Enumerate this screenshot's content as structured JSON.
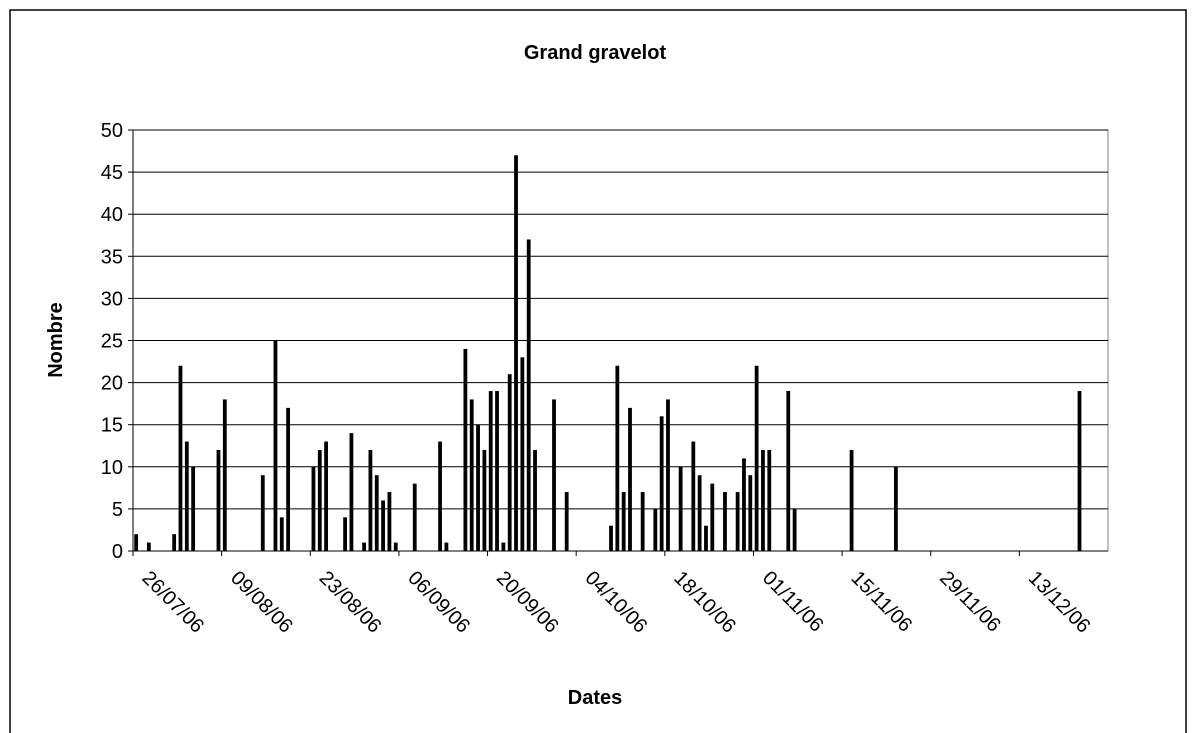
{
  "chart_data": {
    "type": "bar",
    "title": "Grand gravelot",
    "x_label": "Dates",
    "y_label": "Nombre",
    "color": "#000000",
    "x": [
      "26/07/06",
      "28/07/06",
      "01/08/06",
      "02/08/06",
      "03/08/06",
      "04/08/06",
      "08/08/06",
      "09/08/06",
      "15/08/06",
      "17/08/06",
      "18/08/06",
      "19/08/06",
      "23/08/06",
      "24/08/06",
      "25/08/06",
      "28/08/06",
      "29/08/06",
      "31/08/06",
      "01/09/06",
      "02/09/06",
      "03/09/06",
      "04/09/06",
      "05/09/06",
      "08/09/06",
      "12/09/06",
      "13/09/06",
      "16/09/06",
      "17/09/06",
      "18/09/06",
      "19/09/06",
      "20/09/06",
      "21/09/06",
      "22/09/06",
      "23/09/06",
      "24/09/06",
      "25/09/06",
      "26/09/06",
      "27/09/06",
      "30/09/06",
      "02/10/06",
      "09/10/06",
      "10/10/06",
      "11/10/06",
      "12/10/06",
      "14/10/06",
      "16/10/06",
      "17/10/06",
      "18/10/06",
      "20/10/06",
      "22/10/06",
      "23/10/06",
      "24/10/06",
      "25/10/06",
      "27/10/06",
      "29/10/06",
      "30/10/06",
      "31/10/06",
      "01/11/06",
      "02/11/06",
      "03/11/06",
      "06/11/06",
      "07/11/06",
      "16/11/06",
      "23/11/06",
      "22/12/06"
    ],
    "values": [
      2,
      1,
      2,
      22,
      13,
      10,
      12,
      18,
      9,
      25,
      4,
      17,
      10,
      12,
      13,
      4,
      14,
      1,
      12,
      9,
      6,
      7,
      1,
      8,
      13,
      1,
      24,
      18,
      15,
      12,
      19,
      19,
      1,
      21,
      47,
      23,
      37,
      12,
      18,
      7,
      3,
      22,
      7,
      17,
      7,
      5,
      16,
      18,
      10,
      13,
      9,
      3,
      8,
      7,
      7,
      11,
      9,
      22,
      12,
      12,
      19,
      5,
      12,
      10,
      19
    ],
    "xlim": [
      "26/07/06",
      "27/12/06"
    ],
    "xticks": [
      "26/07/06",
      "09/08/06",
      "23/08/06",
      "06/09/06",
      "20/09/06",
      "04/10/06",
      "18/10/06",
      "01/11/06",
      "15/11/06",
      "29/11/06",
      "13/12/06"
    ],
    "ylim": [
      0,
      50
    ],
    "yticks": [
      0,
      5,
      10,
      15,
      20,
      25,
      30,
      35,
      40,
      45,
      50
    ],
    "grid": true
  }
}
